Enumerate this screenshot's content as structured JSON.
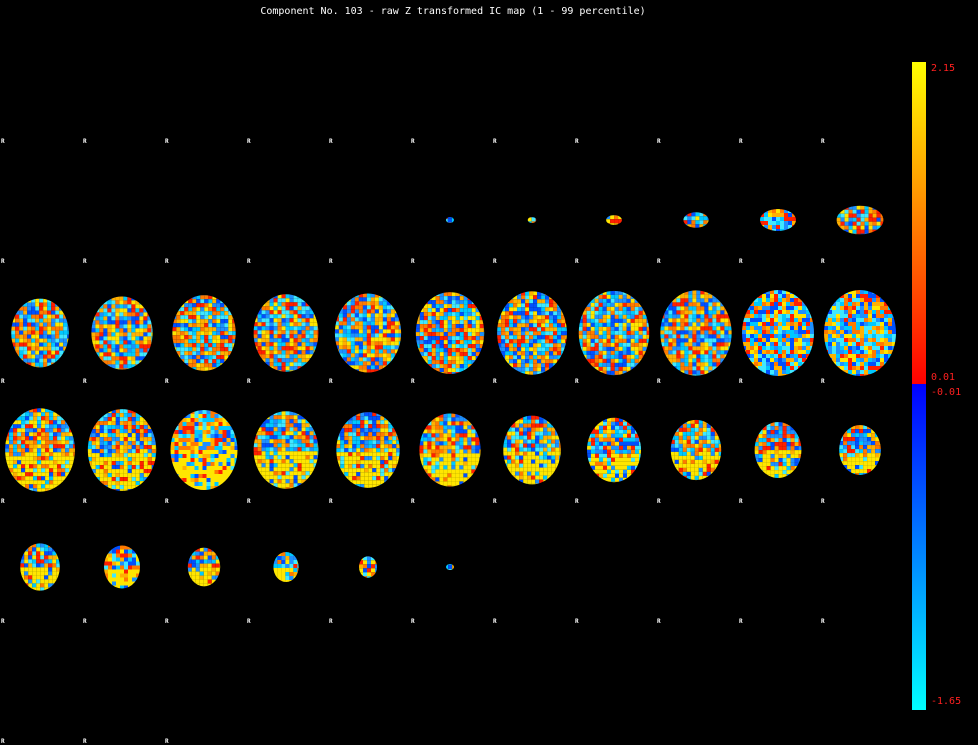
{
  "title": "Component No. 103 - raw Z transformed IC map (1 - 99 percentile)",
  "slice_marker": "R",
  "grid": {
    "columns": 11,
    "rows": 5,
    "visible_markers": 58
  },
  "slices": [
    {
      "index": 0,
      "present": false
    },
    {
      "index": 1,
      "present": false
    },
    {
      "index": 2,
      "present": false
    },
    {
      "index": 3,
      "present": false
    },
    {
      "index": 4,
      "present": false
    },
    {
      "index": 5,
      "present": true,
      "extent": 0.06
    },
    {
      "index": 6,
      "present": true,
      "extent": 0.12
    },
    {
      "index": 7,
      "present": true,
      "extent": 0.22
    },
    {
      "index": 8,
      "present": true,
      "extent": 0.35
    },
    {
      "index": 9,
      "present": true,
      "extent": 0.5
    },
    {
      "index": 10,
      "present": true,
      "extent": 0.65
    },
    {
      "index": 11,
      "present": true,
      "extent": 0.8
    },
    {
      "index": 12,
      "present": true,
      "extent": 0.85
    },
    {
      "index": 13,
      "present": true,
      "extent": 0.88
    },
    {
      "index": 14,
      "present": true,
      "extent": 0.9
    },
    {
      "index": 15,
      "present": true,
      "extent": 0.92
    },
    {
      "index": 16,
      "present": true,
      "extent": 0.95
    },
    {
      "index": 17,
      "present": true,
      "extent": 0.97
    },
    {
      "index": 18,
      "present": true,
      "extent": 0.98
    },
    {
      "index": 19,
      "present": true,
      "extent": 0.99
    },
    {
      "index": 20,
      "present": true,
      "extent": 1.0
    },
    {
      "index": 21,
      "present": true,
      "extent": 1.0
    },
    {
      "index": 22,
      "present": true,
      "extent": 0.97
    },
    {
      "index": 23,
      "present": true,
      "extent": 0.95
    },
    {
      "index": 24,
      "present": true,
      "extent": 0.93
    },
    {
      "index": 25,
      "present": true,
      "extent": 0.9
    },
    {
      "index": 26,
      "present": true,
      "extent": 0.88
    },
    {
      "index": 27,
      "present": true,
      "extent": 0.85
    },
    {
      "index": 28,
      "present": true,
      "extent": 0.8
    },
    {
      "index": 29,
      "present": true,
      "extent": 0.75
    },
    {
      "index": 30,
      "present": true,
      "extent": 0.7
    },
    {
      "index": 31,
      "present": true,
      "extent": 0.65
    },
    {
      "index": 32,
      "present": true,
      "extent": 0.58
    },
    {
      "index": 33,
      "present": true,
      "extent": 0.55
    },
    {
      "index": 34,
      "present": true,
      "extent": 0.5
    },
    {
      "index": 35,
      "present": true,
      "extent": 0.45
    },
    {
      "index": 36,
      "present": true,
      "extent": 0.35
    },
    {
      "index": 37,
      "present": true,
      "extent": 0.25
    },
    {
      "index": 38,
      "present": true,
      "extent": 0.05
    },
    {
      "index": 39,
      "present": false
    },
    {
      "index": 40,
      "present": false
    },
    {
      "index": 41,
      "present": false
    },
    {
      "index": 42,
      "present": false
    },
    {
      "index": 43,
      "present": false
    }
  ],
  "colorbar": {
    "positive_max": "2.15",
    "positive_min": "0.01",
    "negative_max": "-0.01",
    "negative_min": "-1.65",
    "positive_colors": [
      "#ff0000",
      "#ff8000",
      "#ffff00"
    ],
    "negative_colors": [
      "#0000ff",
      "#0080ff",
      "#00ffff"
    ],
    "label_color": "#ff2020"
  },
  "colors": {
    "background": "#000000",
    "text": "#ffffff"
  }
}
